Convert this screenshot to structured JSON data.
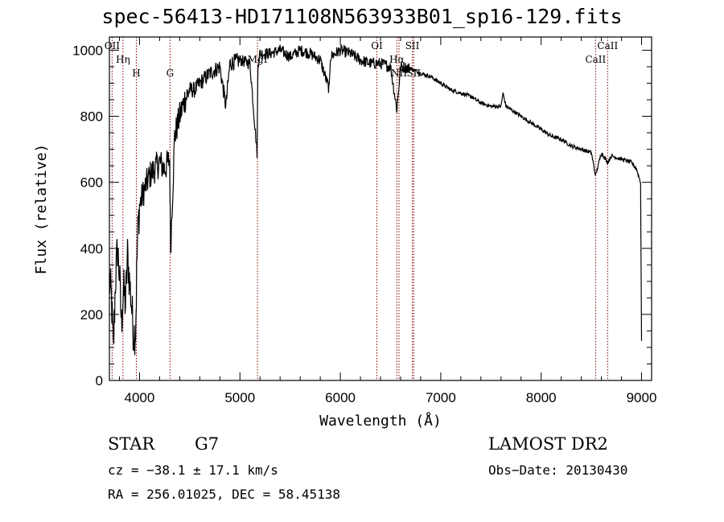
{
  "chart_data": {
    "type": "line",
    "title": "spec-56413-HD171108N563933B01_sp16-129.fits",
    "xlabel": "Wavelength (Å)",
    "ylabel": "Flux (relative)",
    "xlim": [
      3700,
      9100
    ],
    "ylim": [
      0,
      1040
    ],
    "xticks": [
      4000,
      5000,
      6000,
      7000,
      8000,
      9000
    ],
    "yticks": [
      0,
      200,
      400,
      600,
      800,
      1000
    ],
    "grid": false,
    "series": [
      {
        "x": [
          3700,
          3720,
          3740,
          3760,
          3780,
          3800,
          3820,
          3840,
          3860,
          3880,
          3900,
          3920,
          3940,
          3960,
          3980,
          4000,
          4050,
          4100,
          4150,
          4200,
          4250,
          4300,
          4310,
          4350,
          4400,
          4450,
          4500,
          4550,
          4600,
          4700,
          4800,
          4860,
          4900,
          5000,
          5100,
          5170,
          5180,
          5200,
          5300,
          5400,
          5500,
          5600,
          5700,
          5800,
          5890,
          5900,
          6000,
          6100,
          6200,
          6300,
          6400,
          6500,
          6563,
          6600,
          6700,
          6800,
          6900,
          7000,
          7100,
          7200,
          7300,
          7400,
          7500,
          7600,
          7620,
          7650,
          7700,
          7800,
          7900,
          8000,
          8100,
          8200,
          8300,
          8400,
          8500,
          8542,
          8600,
          8662,
          8700,
          8800,
          8900,
          8950,
          8990,
          9000
        ],
        "y": [
          300,
          250,
          90,
          300,
          400,
          320,
          170,
          280,
          230,
          380,
          300,
          230,
          140,
          150,
          430,
          530,
          580,
          620,
          640,
          660,
          640,
          670,
          400,
          740,
          800,
          850,
          880,
          880,
          900,
          930,
          950,
          830,
          960,
          970,
          960,
          690,
          960,
          990,
          990,
          1000,
          980,
          1000,
          990,
          970,
          880,
          980,
          1000,
          990,
          970,
          960,
          960,
          950,
          820,
          950,
          945,
          930,
          920,
          900,
          880,
          870,
          860,
          840,
          830,
          830,
          870,
          830,
          820,
          800,
          780,
          760,
          740,
          730,
          710,
          700,
          690,
          620,
          690,
          660,
          680,
          670,
          660,
          640,
          600,
          120
        ]
      }
    ],
    "lines": [
      {
        "label": "OII",
        "x": 3727
      },
      {
        "label": "Hη",
        "x": 3835
      },
      {
        "label": "H",
        "x": 3968
      },
      {
        "label": "G",
        "x": 4304
      },
      {
        "label": "MgI",
        "x": 5175
      },
      {
        "label": "OI",
        "x": 6364
      },
      {
        "label": "Hα",
        "x": 6563
      },
      {
        "label": "NII",
        "x": 6584
      },
      {
        "label": "SII",
        "x": 6717
      },
      {
        "label": "SII",
        "x": 6731
      },
      {
        "label": "CaII",
        "x": 8542
      },
      {
        "label": "CaII",
        "x": 8662
      }
    ]
  },
  "info": {
    "class": "STAR",
    "subclass": "G7",
    "survey": "LAMOST DR2",
    "cz": "cz = −38.1 ± 17.1 km/s",
    "obsdate": "Obs−Date: 20130430",
    "radec": "RA = 256.01025, DEC =  58.45138"
  }
}
